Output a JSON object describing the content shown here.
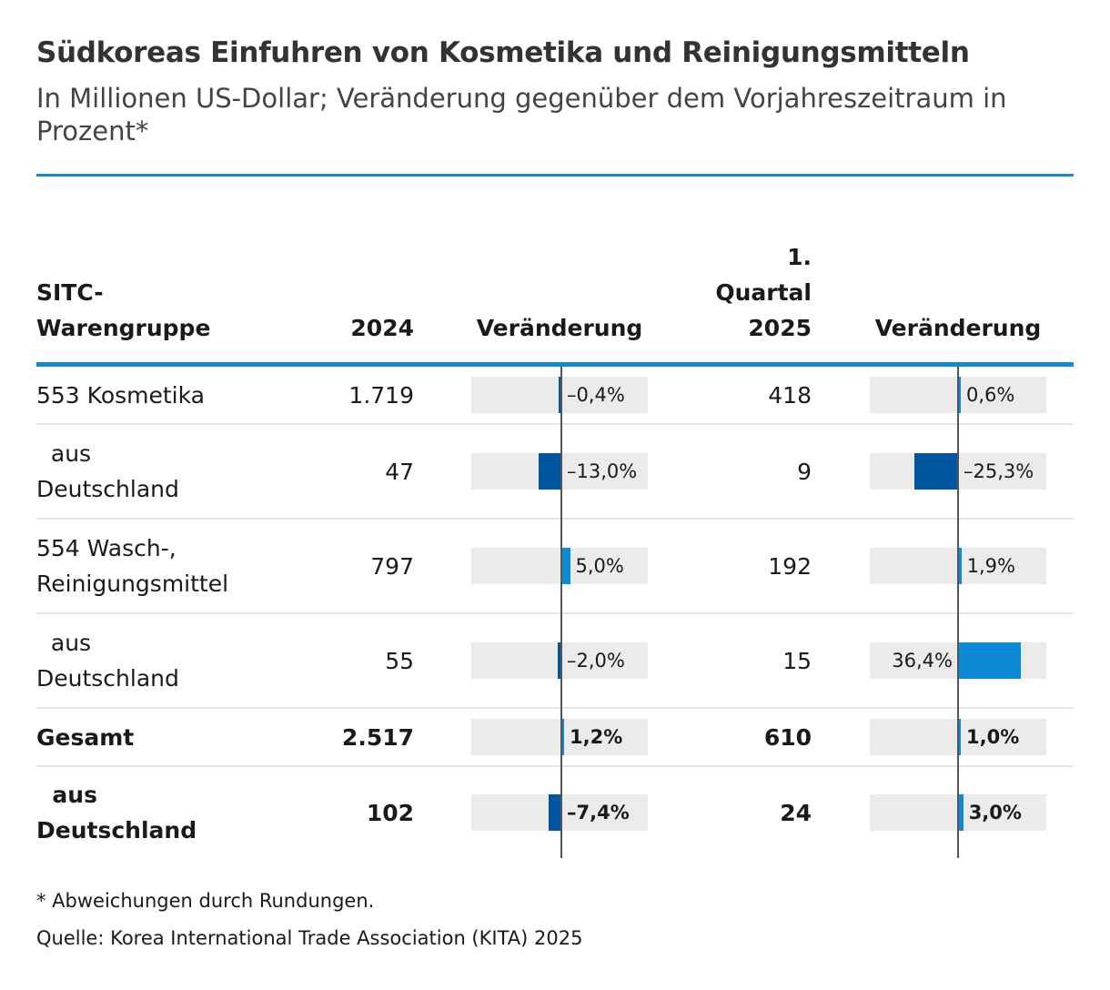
{
  "title": "Südkoreas Einfuhren von Kosmetika und Reinigungsmitteln",
  "subtitle": "In Millionen US-Dollar; Veränderung gegenüber dem Vorjahreszeitraum in Prozent*",
  "headers": {
    "group_line1": "SITC-",
    "group_line2": "Warengruppe",
    "year": "2024",
    "change1": "Veränderung",
    "quarter_line1": "1.",
    "quarter_line2": "Quartal",
    "quarter_line3": "2025",
    "change2": "Veränderung"
  },
  "chart_data": {
    "type": "table",
    "title": "Südkoreas Einfuhren von Kosmetika und Reinigungsmitteln",
    "columns": [
      "SITC-Warengruppe",
      "2024",
      "Veränderung",
      "1. Quartal 2025",
      "Veränderung"
    ],
    "rows": [
      {
        "label_lines": [
          "553 Kosmetika"
        ],
        "v2024": "1.719",
        "chg2024": -0.4,
        "chg2024_label": "–0,4%",
        "vq": "418",
        "chgq": 0.6,
        "chgq_label": "0,6%",
        "bold": false
      },
      {
        "label_lines": [
          "  aus",
          "Deutschland"
        ],
        "v2024": "47",
        "chg2024": -13.0,
        "chg2024_label": "–13,0%",
        "vq": "9",
        "chgq": -25.3,
        "chgq_label": "–25,3%",
        "bold": false
      },
      {
        "label_lines": [
          "554 Wasch-,",
          "Reinigungsmittel"
        ],
        "v2024": "797",
        "chg2024": 5.0,
        "chg2024_label": "5,0%",
        "vq": "192",
        "chgq": 1.9,
        "chgq_label": "1,9%",
        "bold": false
      },
      {
        "label_lines": [
          "  aus",
          "Deutschland"
        ],
        "v2024": "55",
        "chg2024": -2.0,
        "chg2024_label": "–2,0%",
        "vq": "15",
        "chgq": 36.4,
        "chgq_label": "36,4%",
        "bold": false
      },
      {
        "label_lines": [
          "Gesamt"
        ],
        "v2024": "2.517",
        "chg2024": 1.2,
        "chg2024_label": "1,2%",
        "vq": "610",
        "chgq": 1.0,
        "chgq_label": "1,0%",
        "bold": true
      },
      {
        "label_lines": [
          "  aus",
          "Deutschland"
        ],
        "v2024": "102",
        "chg2024": -7.4,
        "chg2024_label": "–7,4%",
        "vq": "24",
        "chgq": 3.0,
        "chgq_label": "3,0%",
        "bold": true
      }
    ]
  },
  "colors": {
    "accent": "#1787d0",
    "negative_bar": "#0057a0",
    "positive_bar": "#0d8ad6",
    "bar_background": "#ebebeb"
  },
  "footnote": "* Abweichungen durch Rundungen.",
  "source": "Quelle: Korea International Trade Association (KITA) 2025"
}
